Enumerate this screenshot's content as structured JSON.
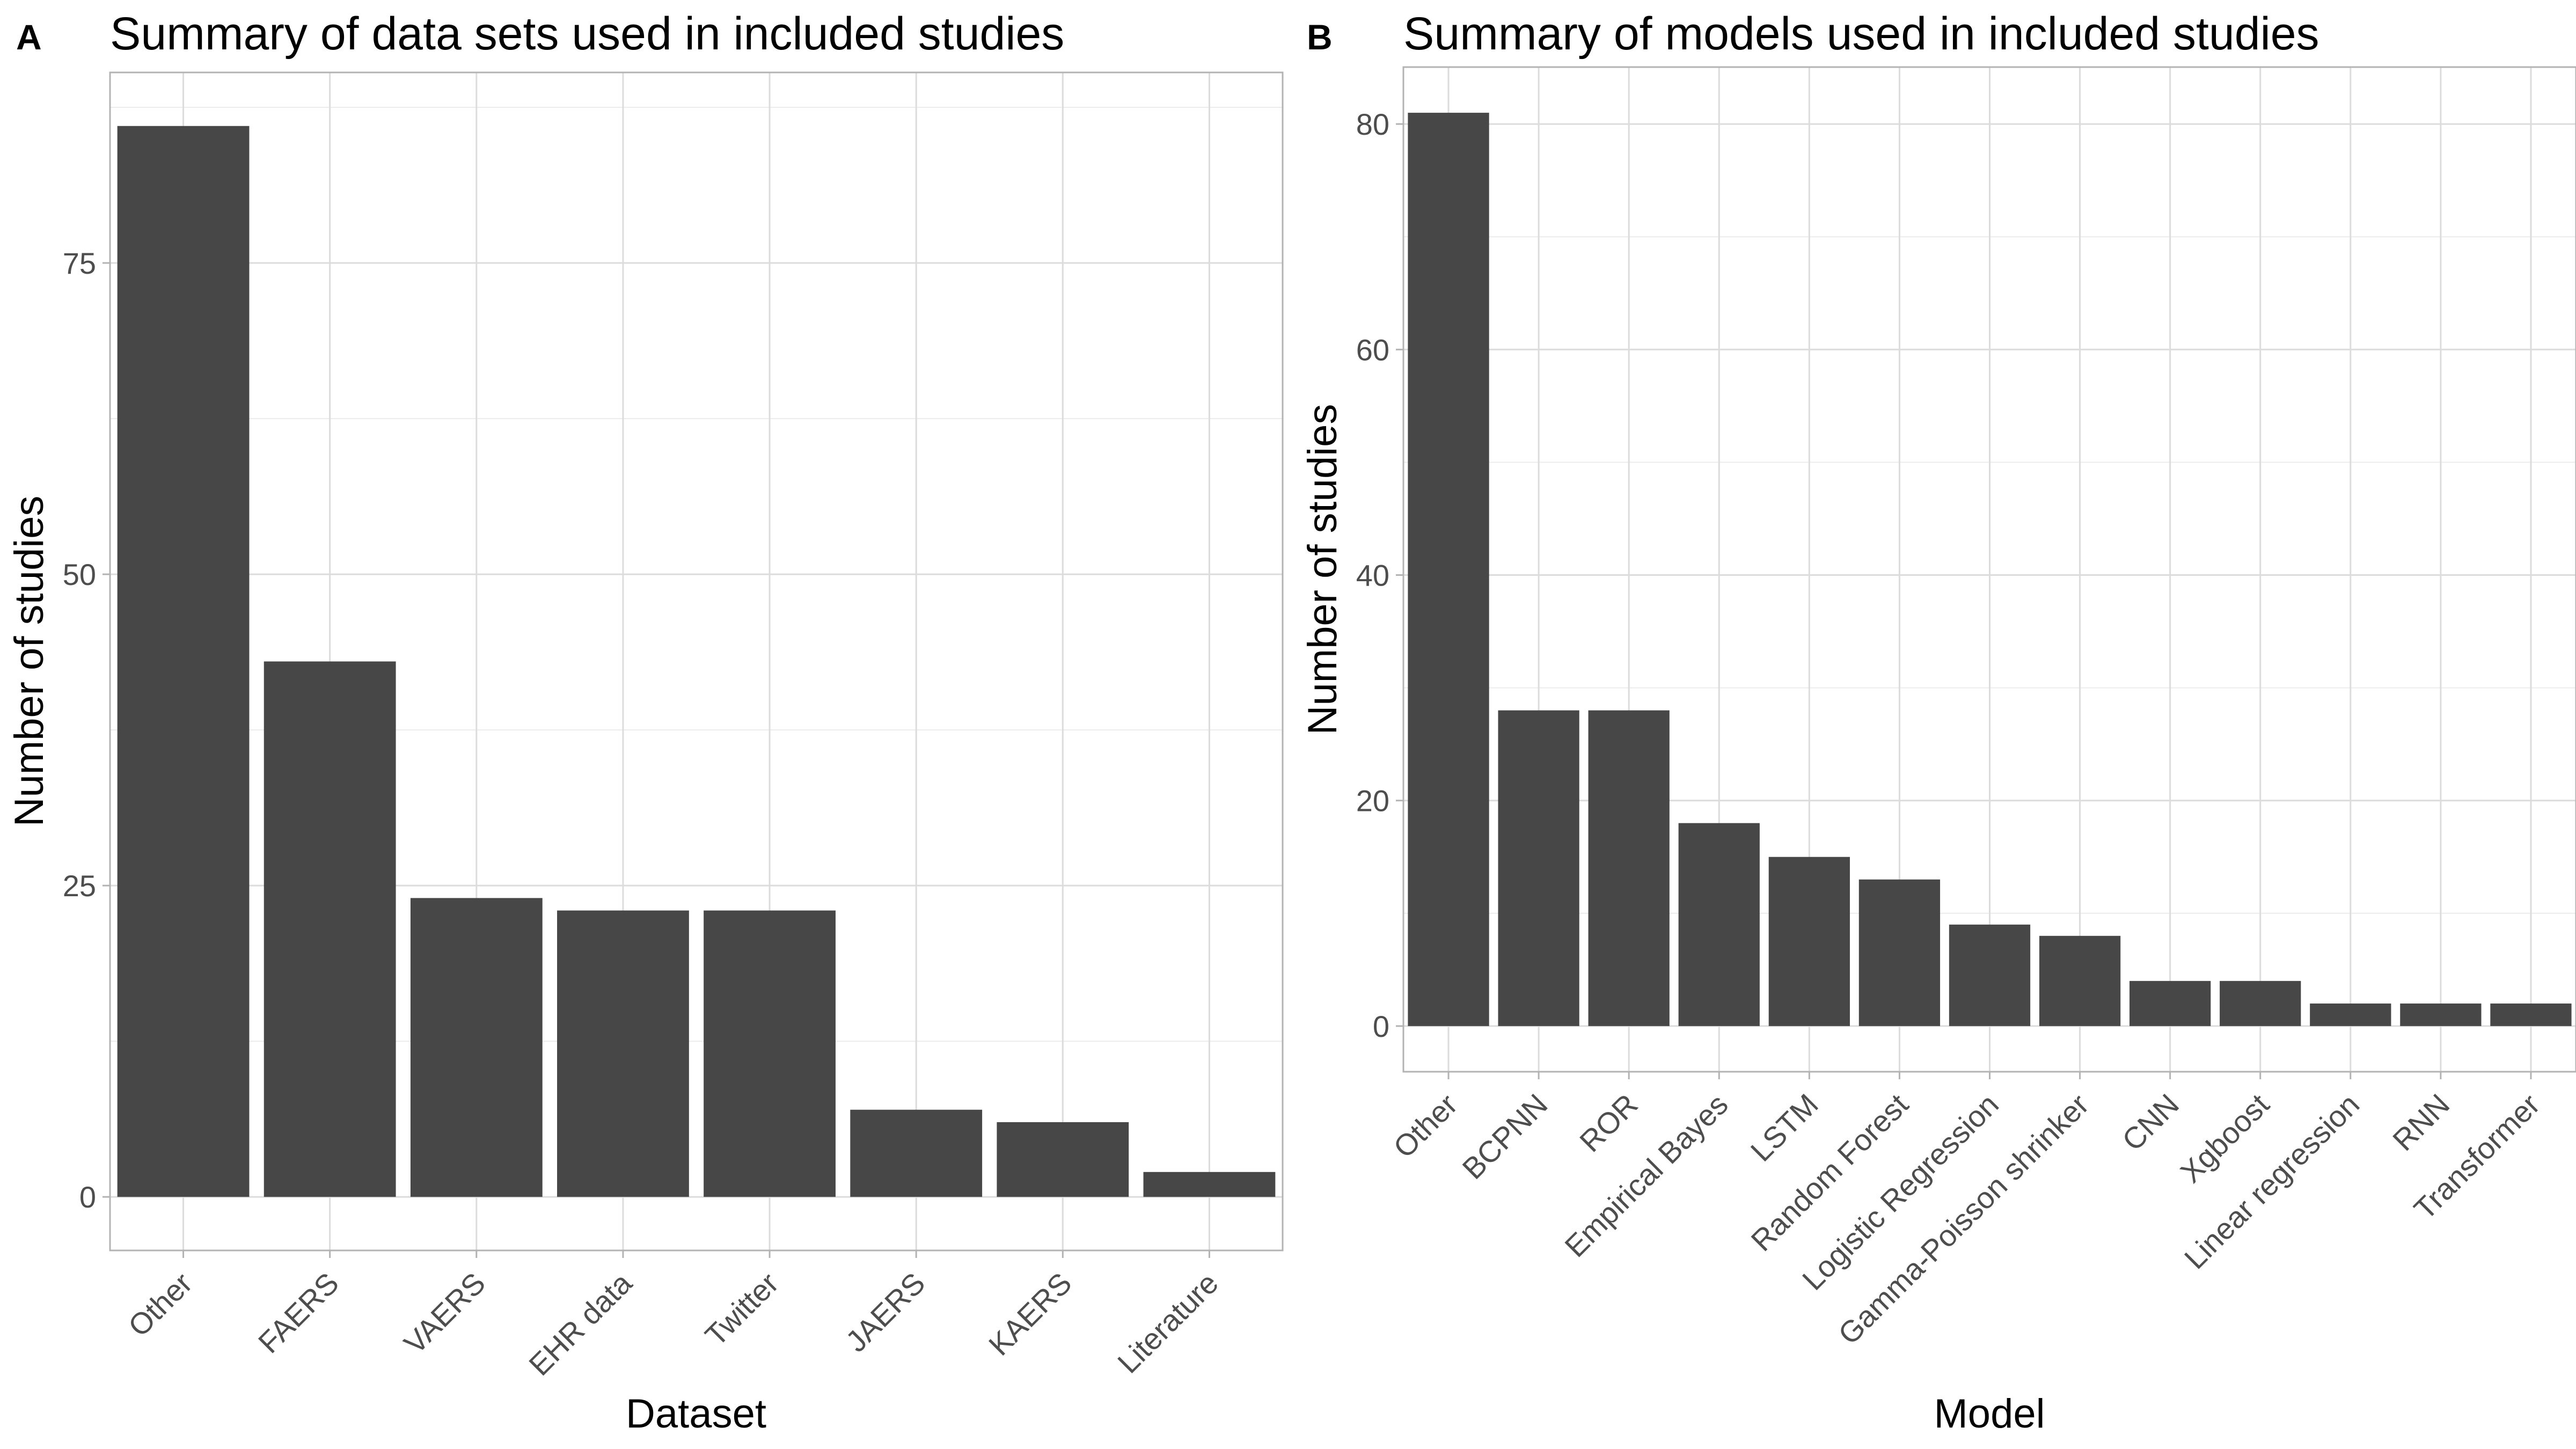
{
  "chart_data": [
    {
      "type": "bar",
      "panel_label": "A",
      "title": "Summary of data sets used in included studies",
      "xlabel": "Dataset",
      "ylabel": "Number of studies",
      "categories": [
        "Other",
        "FAERS",
        "VAERS",
        "EHR data",
        "Twitter",
        "JAERS",
        "KAERS",
        "Literature"
      ],
      "values": [
        86,
        43,
        24,
        23,
        23,
        7,
        6,
        2
      ],
      "ylim": [
        -4.3,
        90.3
      ],
      "yticks": [
        0,
        25,
        50,
        75
      ],
      "ytick_labels": [
        "0",
        "25",
        "50",
        "75"
      ],
      "grid": true,
      "bar_color": "#474747"
    },
    {
      "type": "bar",
      "panel_label": "B",
      "title": "Summary of models used in included studies",
      "xlabel": "Model",
      "ylabel": "Number of studies",
      "categories": [
        "Other",
        "BCPNN",
        "ROR",
        "Empirical Bayes",
        "LSTM",
        "Random Forest",
        "Logistic Regression",
        "Gamma-Poisson shrinker",
        "CNN",
        "Xgboost",
        "Linear regression",
        "RNN",
        "Transformer"
      ],
      "values": [
        81,
        28,
        28,
        18,
        15,
        13,
        9,
        8,
        4,
        4,
        2,
        2,
        2
      ],
      "ylim": [
        -4.05,
        85.05
      ],
      "yticks": [
        0,
        20,
        40,
        60,
        80
      ],
      "ytick_labels": [
        "0",
        "20",
        "40",
        "60",
        "80"
      ],
      "grid": true,
      "bar_color": "#474747"
    }
  ]
}
